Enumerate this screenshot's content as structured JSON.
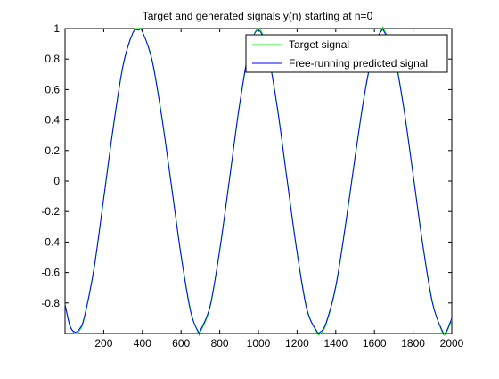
{
  "chart_data": {
    "type": "line",
    "title": "Target and generated signals y(n) starting at n=0",
    "xlabel": "",
    "ylabel": "",
    "xlim": [
      0,
      2000
    ],
    "ylim": [
      -1,
      1
    ],
    "xticks": [
      200,
      400,
      600,
      800,
      1000,
      1200,
      1400,
      1600,
      1800,
      2000
    ],
    "yticks": [
      -0.8,
      -0.6,
      -0.4,
      -0.2,
      0,
      0.2,
      0.4,
      0.6,
      0.8,
      1
    ],
    "xtick_labels": [
      "200",
      "400",
      "600",
      "800",
      "1000",
      "1200",
      "1400",
      "1600",
      "1800",
      "2000"
    ],
    "ytick_labels": [
      "-0.8",
      "-0.6",
      "-0.4",
      "-0.2",
      "0",
      "0.2",
      "0.4",
      "0.6",
      "0.8",
      "1"
    ],
    "grid": false,
    "legend_position": "top-right",
    "series": [
      {
        "name": "Target signal",
        "color": "#00ff00",
        "x": [
          0,
          25,
          50,
          75,
          100,
          150,
          200,
          250,
          300,
          350,
          380,
          400,
          450,
          500,
          550,
          600,
          650,
          690,
          700,
          750,
          800,
          850,
          900,
          950,
          1000,
          1050,
          1100,
          1150,
          1200,
          1250,
          1300,
          1320,
          1350,
          1400,
          1450,
          1500,
          1550,
          1600,
          1640,
          1650,
          1700,
          1750,
          1800,
          1850,
          1900,
          1950,
          1970,
          2000
        ],
        "values": [
          -0.81,
          -0.94,
          -1.0,
          -0.98,
          -0.9,
          -0.58,
          -0.12,
          0.35,
          0.75,
          0.97,
          1.0,
          0.98,
          0.8,
          0.43,
          -0.02,
          -0.48,
          -0.85,
          -1.0,
          -0.99,
          -0.83,
          -0.46,
          0.0,
          0.47,
          0.84,
          1.0,
          0.84,
          0.47,
          0.0,
          -0.46,
          -0.83,
          -0.99,
          -1.0,
          -0.94,
          -0.7,
          -0.3,
          0.15,
          0.57,
          0.88,
          1.0,
          0.99,
          0.85,
          0.5,
          0.05,
          -0.41,
          -0.79,
          -0.99,
          -1.0,
          -0.91
        ]
      },
      {
        "name": "Free-running predicted signal",
        "color": "#0000ff",
        "x": [
          0,
          25,
          50,
          75,
          100,
          150,
          200,
          250,
          300,
          350,
          380,
          400,
          450,
          500,
          550,
          600,
          650,
          690,
          700,
          750,
          800,
          850,
          900,
          950,
          1000,
          1050,
          1100,
          1150,
          1200,
          1250,
          1300,
          1320,
          1350,
          1400,
          1450,
          1500,
          1550,
          1600,
          1640,
          1650,
          1700,
          1750,
          1800,
          1850,
          1900,
          1950,
          1970,
          2000
        ],
        "values": [
          -0.81,
          -0.95,
          -0.99,
          -0.97,
          -0.89,
          -0.57,
          -0.11,
          0.36,
          0.76,
          0.97,
          0.99,
          0.98,
          0.79,
          0.42,
          -0.03,
          -0.49,
          -0.86,
          -0.99,
          -0.98,
          -0.82,
          -0.45,
          0.01,
          0.48,
          0.85,
          0.99,
          0.83,
          0.46,
          -0.01,
          -0.47,
          -0.84,
          -0.98,
          -0.99,
          -0.93,
          -0.69,
          -0.29,
          0.16,
          0.58,
          0.89,
          0.99,
          0.98,
          0.84,
          0.49,
          0.04,
          -0.42,
          -0.8,
          -0.98,
          -0.99,
          -0.9
        ]
      }
    ]
  }
}
